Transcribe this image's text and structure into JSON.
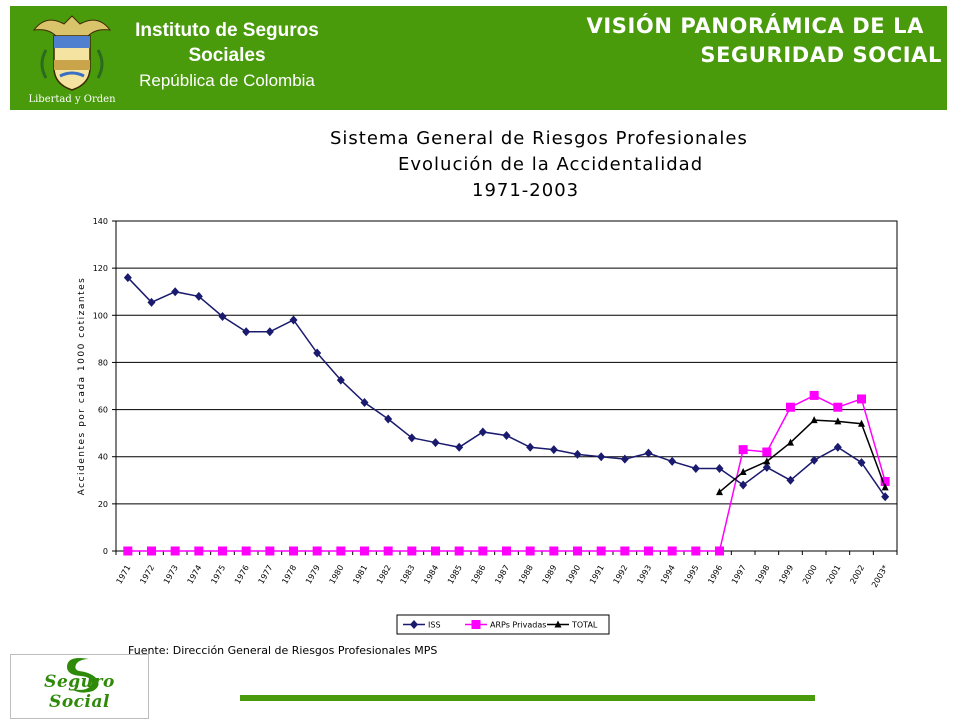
{
  "header": {
    "institute_line1": "Instituto de Seguros",
    "institute_line2": "Sociales",
    "institute_line3": "República de Colombia",
    "seal_motto": "Libertad y Orden",
    "title_line1": "VISIÓN PANORÁMICA DE LA",
    "title_line2": "SEGURIDAD SOCIAL",
    "brand_color": "#4a9b0c"
  },
  "chart_title": {
    "line1": "Sistema General de Riesgos Profesionales",
    "line2": "Evolución de la Accidentalidad",
    "line3": "1971-2003"
  },
  "source": "Fuente: Dirección General de Riesgos Profesionales MPS",
  "logo": {
    "text": "Seguro Social"
  },
  "chart_data": {
    "type": "line",
    "x": [
      "1971",
      "1972",
      "1973",
      "1974",
      "1975",
      "1976",
      "1977",
      "1978",
      "1979",
      "1980",
      "1981",
      "1982",
      "1983",
      "1984",
      "1985",
      "1986",
      "1987",
      "1988",
      "1989",
      "1990",
      "1991",
      "1992",
      "1993",
      "1994",
      "1995",
      "1996",
      "1997",
      "1998",
      "1999",
      "2000",
      "2001",
      "2002",
      "2003*"
    ],
    "series": [
      {
        "name": "ISS",
        "color": "#1a1a6e",
        "marker": "diamond",
        "values": [
          116,
          105.5,
          110,
          108,
          99.5,
          93,
          93,
          98,
          84,
          72.5,
          63,
          56,
          48,
          46,
          44,
          50.5,
          49,
          44,
          43,
          41,
          40,
          39,
          41.5,
          38,
          35,
          35,
          28,
          35.5,
          30,
          38.5,
          44,
          37.5,
          23
        ]
      },
      {
        "name": "ARPs Privadas",
        "color": "#ff00ff",
        "marker": "square",
        "values": [
          0,
          0,
          0,
          0,
          0,
          0,
          0,
          0,
          0,
          0,
          0,
          0,
          0,
          0,
          0,
          0,
          0,
          0,
          0,
          0,
          0,
          0,
          0,
          0,
          0,
          0,
          43,
          42,
          61,
          66,
          61,
          64.5,
          29.5
        ]
      },
      {
        "name": "TOTAL",
        "color": "#000000",
        "marker": "triangle",
        "values": [
          null,
          null,
          null,
          null,
          null,
          null,
          null,
          null,
          null,
          null,
          null,
          null,
          null,
          null,
          null,
          null,
          null,
          null,
          null,
          null,
          null,
          null,
          null,
          null,
          null,
          25,
          33.5,
          38,
          46,
          55.5,
          55,
          54,
          27
        ]
      }
    ],
    "ylabel": "Accidentes por cada 1000 cotizantes",
    "ylim": [
      0,
      140
    ],
    "yticks": [
      "0",
      "20",
      "40",
      "60",
      "80",
      "100",
      "120",
      "140"
    ],
    "grid": true,
    "legend_position": "bottom"
  }
}
